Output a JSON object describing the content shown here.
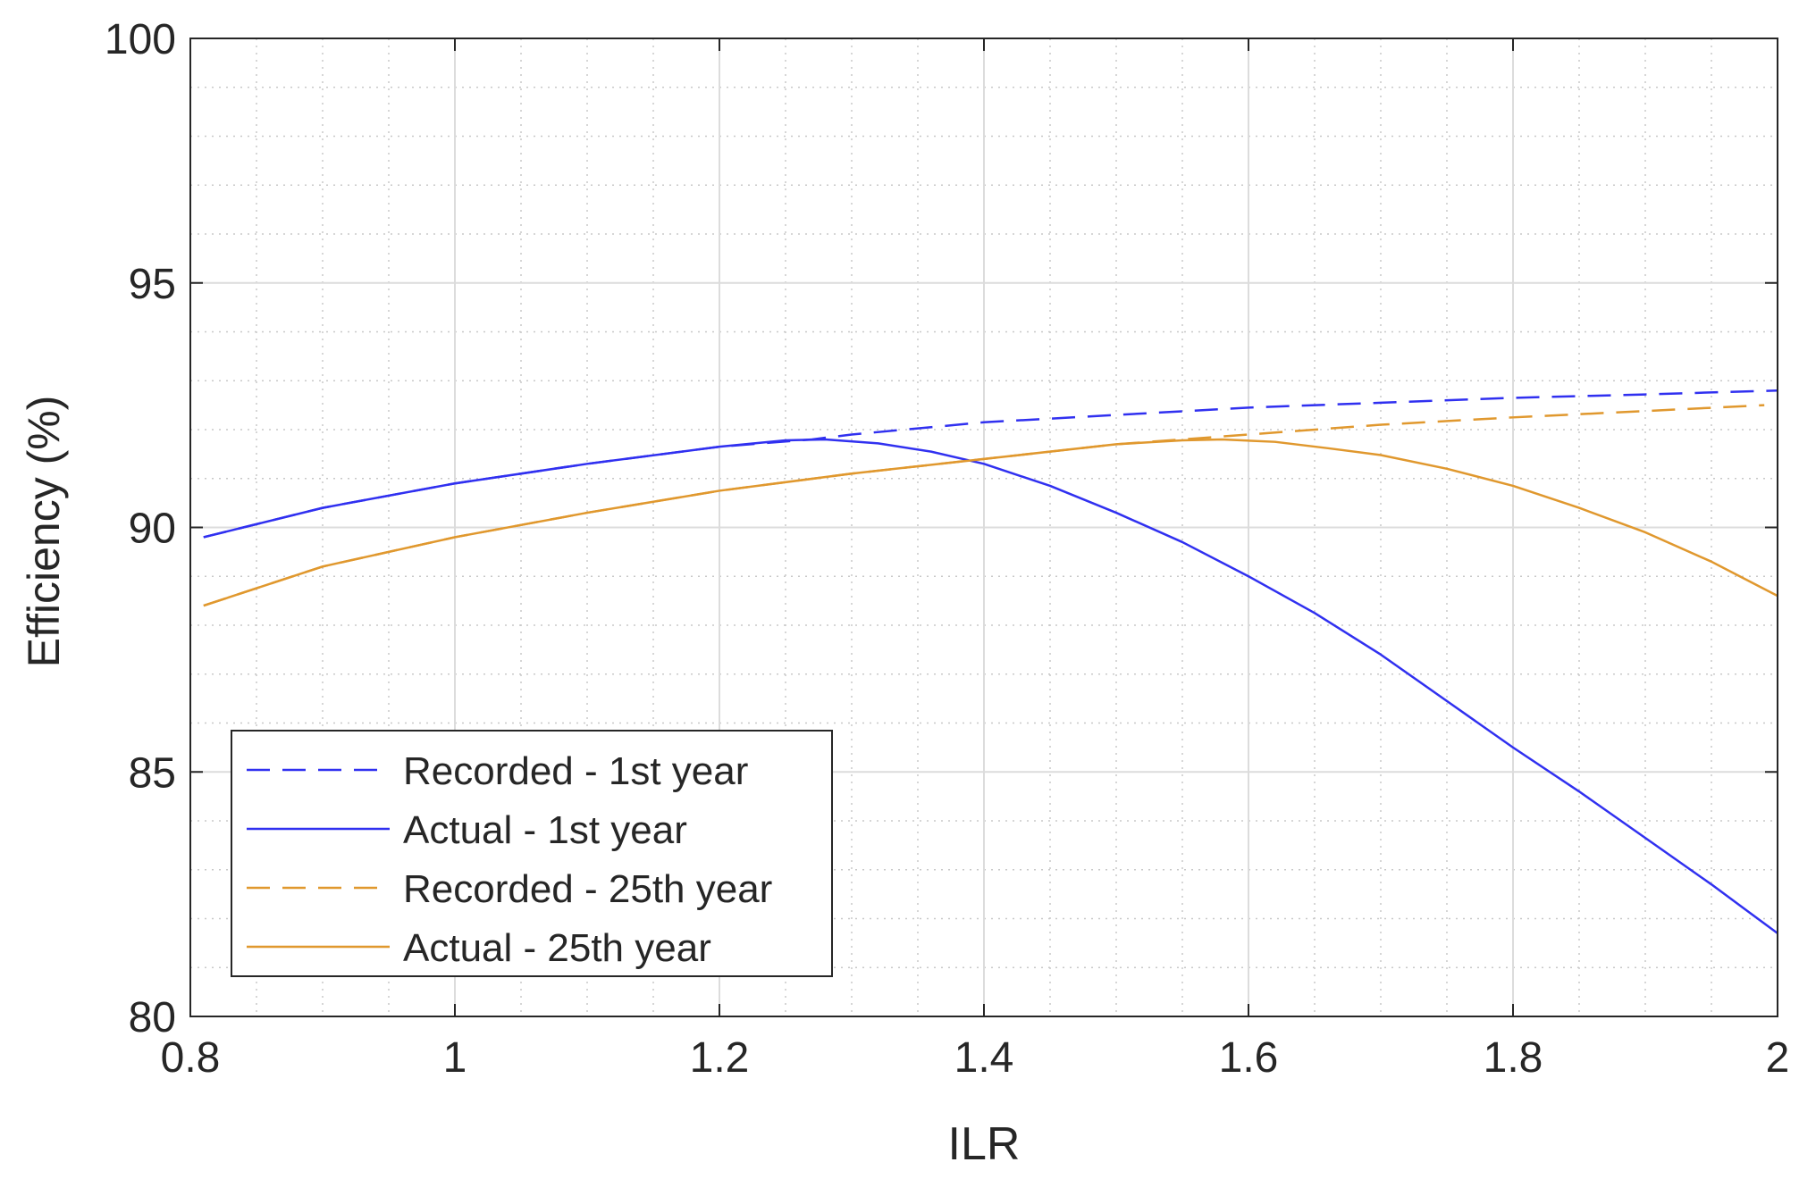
{
  "chart_data": {
    "type": "line",
    "title": "",
    "xlabel": "ILR",
    "ylabel": "Efficiency (%)",
    "xlim": [
      0.8,
      2.0
    ],
    "ylim": [
      80,
      100
    ],
    "xticks": [
      0.8,
      1.0,
      1.2,
      1.4,
      1.6,
      1.8,
      2.0
    ],
    "xtick_labels": [
      "0.8",
      "1",
      "1.2",
      "1.4",
      "1.6",
      "1.8",
      "2"
    ],
    "yticks": [
      80,
      85,
      90,
      95,
      100
    ],
    "ytick_labels": [
      "80",
      "85",
      "90",
      "95",
      "100"
    ],
    "grid": true,
    "minor_grid": true,
    "legend_position": "lower-left",
    "series": [
      {
        "name": "Recorded - 1st year",
        "color": "#3030f0",
        "dash": true,
        "x": [
          0.81,
          0.9,
          1.0,
          1.1,
          1.2,
          1.27,
          1.3,
          1.4,
          1.5,
          1.6,
          1.7,
          1.8,
          1.9,
          2.0
        ],
        "y": [
          89.8,
          90.4,
          90.9,
          91.3,
          91.65,
          91.8,
          91.9,
          92.15,
          92.3,
          92.45,
          92.55,
          92.65,
          92.72,
          92.8
        ]
      },
      {
        "name": "Actual - 1st year",
        "color": "#3030f0",
        "dash": false,
        "x": [
          0.81,
          0.9,
          1.0,
          1.1,
          1.2,
          1.25,
          1.28,
          1.32,
          1.36,
          1.4,
          1.45,
          1.5,
          1.55,
          1.6,
          1.65,
          1.7,
          1.75,
          1.8,
          1.85,
          1.9,
          1.95,
          2.0
        ],
        "y": [
          89.8,
          90.4,
          90.9,
          91.3,
          91.65,
          91.78,
          91.8,
          91.72,
          91.55,
          91.3,
          90.85,
          90.3,
          89.7,
          89.0,
          88.25,
          87.4,
          86.45,
          85.5,
          84.6,
          83.65,
          82.7,
          81.7
        ]
      },
      {
        "name": "Recorded - 25th year",
        "color": "#e0982e",
        "dash": true,
        "x": [
          0.81,
          0.9,
          1.0,
          1.1,
          1.2,
          1.3,
          1.4,
          1.5,
          1.6,
          1.7,
          1.8,
          1.9,
          1.99
        ],
        "y": [
          88.4,
          89.2,
          89.8,
          90.3,
          90.75,
          91.1,
          91.4,
          91.7,
          91.9,
          92.1,
          92.25,
          92.38,
          92.5
        ]
      },
      {
        "name": "Actual - 25th year",
        "color": "#e0982e",
        "dash": false,
        "x": [
          0.81,
          0.9,
          1.0,
          1.1,
          1.2,
          1.3,
          1.4,
          1.5,
          1.55,
          1.58,
          1.62,
          1.66,
          1.7,
          1.75,
          1.8,
          1.85,
          1.9,
          1.95,
          2.0
        ],
        "y": [
          88.4,
          89.2,
          89.8,
          90.3,
          90.75,
          91.1,
          91.4,
          91.7,
          91.78,
          91.8,
          91.75,
          91.62,
          91.48,
          91.2,
          90.85,
          90.4,
          89.9,
          89.3,
          88.6
        ]
      }
    ]
  }
}
